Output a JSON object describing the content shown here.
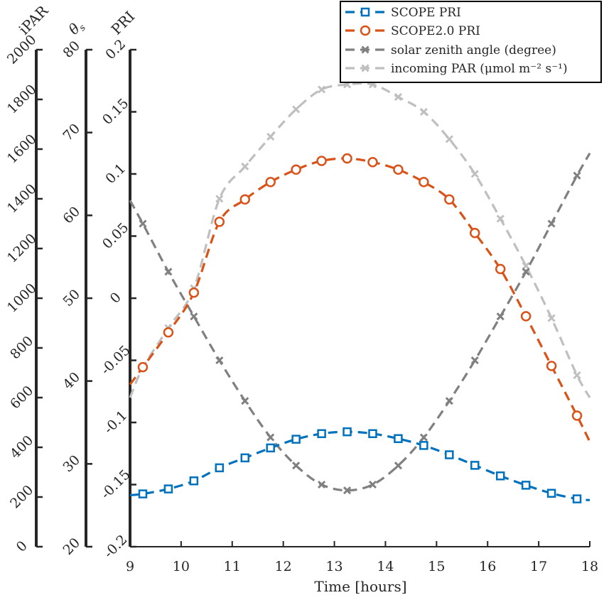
{
  "chart_data": {
    "type": "line",
    "xlabel": "Time [hours]",
    "xlim": [
      9,
      18
    ],
    "x_ticks": [
      "9",
      "10",
      "11",
      "12",
      "13",
      "14",
      "15",
      "16",
      "17",
      "18"
    ],
    "axes": {
      "ipar": {
        "label": "iPAR",
        "ylim": [
          0,
          2000
        ],
        "ticks": [
          "0",
          "200",
          "400",
          "600",
          "800",
          "1000",
          "1200",
          "1400",
          "1600",
          "1800",
          "2000"
        ]
      },
      "theta": {
        "label": "θs",
        "ylim": [
          20,
          80
        ],
        "ticks": [
          "20",
          "30",
          "40",
          "50",
          "60",
          "70",
          "80"
        ]
      },
      "pri": {
        "label": "PRI",
        "ylim": [
          -0.2,
          0.2
        ],
        "ticks": [
          "-0.2",
          "-0.15",
          "-0.1",
          "-0.05",
          "0",
          "0.05",
          "0.1",
          "0.15",
          "0.2"
        ]
      }
    },
    "series": [
      {
        "name": "SCOPE PRI",
        "axis": "pri",
        "color": "#0072BD",
        "marker": "square",
        "x": [
          9.25,
          9.75,
          10.25,
          10.75,
          11.25,
          11.75,
          12.25,
          12.75,
          13.25,
          13.75,
          14.25,
          14.75,
          15.25,
          15.75,
          16.25,
          16.75,
          17.25,
          17.75
        ],
        "y": [
          -0.1575,
          -0.1535,
          -0.147,
          -0.1365,
          -0.1285,
          -0.1205,
          -0.1135,
          -0.109,
          -0.1075,
          -0.109,
          -0.113,
          -0.1185,
          -0.126,
          -0.1345,
          -0.143,
          -0.1505,
          -0.157,
          -0.1615
        ],
        "line_x": [
          9.0,
          18.0
        ],
        "line_y": [
          -0.1585,
          -0.1625
        ]
      },
      {
        "name": "SCOPE2.0 PRI",
        "axis": "pri",
        "color": "#D95319",
        "marker": "circle",
        "x": [
          9.25,
          9.75,
          10.25,
          10.75,
          11.25,
          11.75,
          12.25,
          12.75,
          13.25,
          13.75,
          14.25,
          14.75,
          15.25,
          15.75,
          16.25,
          16.75,
          17.25,
          17.75
        ],
        "y": [
          -0.0555,
          -0.0275,
          0.0045,
          0.0615,
          0.0795,
          0.0935,
          0.1035,
          0.1105,
          0.1125,
          0.1095,
          0.1035,
          0.0935,
          0.0795,
          0.0525,
          0.0235,
          -0.0145,
          -0.0545,
          -0.0945
        ],
        "line_x": [
          9.0,
          18.0
        ],
        "line_y": [
          -0.0695,
          -0.1155
        ]
      },
      {
        "name": "solar zenith angle (degree)",
        "axis": "theta",
        "color": "#808080",
        "marker": "x",
        "x": [
          9.25,
          9.75,
          10.25,
          10.75,
          11.25,
          11.75,
          12.25,
          12.75,
          13.25,
          13.75,
          14.25,
          14.75,
          15.25,
          15.75,
          16.25,
          16.75,
          17.25,
          17.75
        ],
        "y": [
          59.0,
          53.2,
          47.8,
          42.5,
          37.6,
          33.2,
          29.8,
          27.5,
          26.8,
          27.5,
          29.8,
          33.2,
          37.6,
          42.5,
          47.8,
          53.2,
          59.0,
          64.8
        ],
        "line_x": [
          9.0,
          18.0
        ],
        "line_y": [
          61.8,
          67.5
        ]
      },
      {
        "name": "incoming PAR (μmol m⁻² s⁻¹)",
        "axis": "ipar",
        "color": "#BFBFBF",
        "marker": "x",
        "x": [
          9.25,
          9.75,
          10.25,
          10.75,
          11.25,
          11.75,
          12.25,
          12.75,
          13.25,
          13.75,
          14.25,
          14.75,
          15.25,
          15.75,
          16.25,
          16.75,
          17.25,
          17.75
        ],
        "y": [
          720,
          880,
          1040,
          1400,
          1530,
          1650,
          1760,
          1840,
          1860,
          1860,
          1810,
          1750,
          1640,
          1500,
          1320,
          1130,
          920,
          690
        ],
        "line_x": [
          9.0,
          18.0
        ],
        "line_y": [
          600,
          600
        ]
      }
    ]
  }
}
